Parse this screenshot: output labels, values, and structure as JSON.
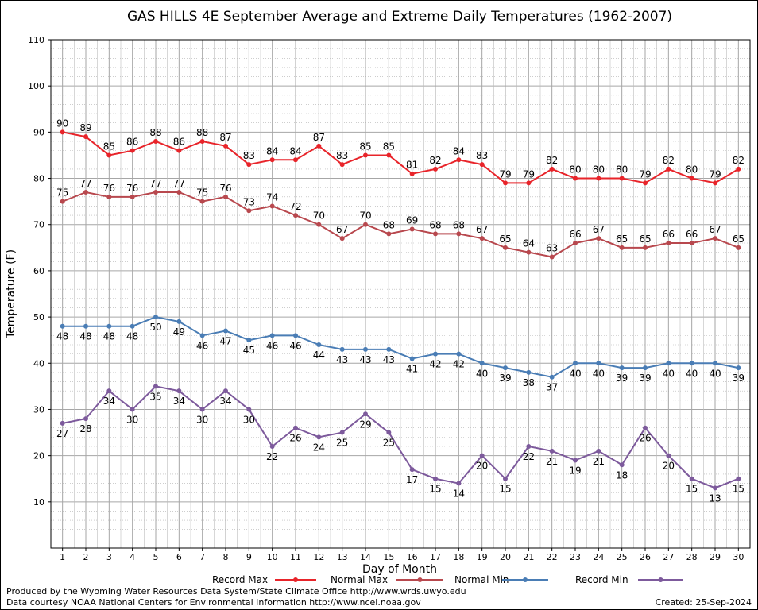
{
  "chart_data": {
    "type": "line",
    "title": "GAS HILLS 4E September Average and Extreme Daily Temperatures (1962-2007)",
    "xlabel": "Day of Month",
    "ylabel": "Temperature (F)",
    "ylim": [
      0,
      110
    ],
    "xlim": [
      0.5,
      30.5
    ],
    "yticks": [
      10,
      20,
      30,
      40,
      50,
      60,
      70,
      80,
      90,
      100,
      110
    ],
    "x": [
      1,
      2,
      3,
      4,
      5,
      6,
      7,
      8,
      9,
      10,
      11,
      12,
      13,
      14,
      15,
      16,
      17,
      18,
      19,
      20,
      21,
      22,
      23,
      24,
      25,
      26,
      27,
      28,
      29,
      30
    ],
    "grid": true,
    "legend_position": "bottom",
    "series": [
      {
        "name": "Record Max",
        "color": "#e8242a",
        "label_pos": "above",
        "values": [
          90,
          89,
          85,
          86,
          88,
          86,
          88,
          87,
          83,
          84,
          84,
          87,
          83,
          85,
          85,
          81,
          82,
          84,
          83,
          79,
          79,
          82,
          80,
          80,
          80,
          79,
          82,
          80,
          79,
          82
        ]
      },
      {
        "name": "Normal Max",
        "color": "#b8484e",
        "label_pos": "above",
        "values": [
          75,
          77,
          76,
          76,
          77,
          77,
          75,
          76,
          73,
          74,
          72,
          70,
          67,
          70,
          68,
          69,
          68,
          68,
          67,
          65,
          64,
          63,
          66,
          67,
          65,
          65,
          66,
          66,
          67,
          65
        ]
      },
      {
        "name": "Normal Min",
        "color": "#4a7db5",
        "label_pos": "below",
        "values": [
          48,
          48,
          48,
          48,
          50,
          49,
          46,
          47,
          45,
          46,
          46,
          44,
          43,
          43,
          43,
          41,
          42,
          42,
          40,
          39,
          38,
          37,
          40,
          40,
          39,
          39,
          40,
          40,
          40,
          39
        ]
      },
      {
        "name": "Record Min",
        "color": "#7d5a9c",
        "label_pos": "below",
        "values": [
          27,
          28,
          34,
          30,
          35,
          34,
          30,
          34,
          30,
          22,
          26,
          24,
          25,
          29,
          25,
          17,
          15,
          14,
          20,
          15,
          22,
          21,
          19,
          21,
          18,
          26,
          20,
          15,
          13,
          15
        ]
      }
    ]
  },
  "footer": {
    "line1": "Produced by the Wyoming Water Resources Data System/State Climate Office http://www.wrds.uwyo.edu",
    "line2": "Data courtesy NOAA National Centers for Environmental Information http://www.ncei.noaa.gov",
    "created": "Created:  25-Sep-2024"
  }
}
